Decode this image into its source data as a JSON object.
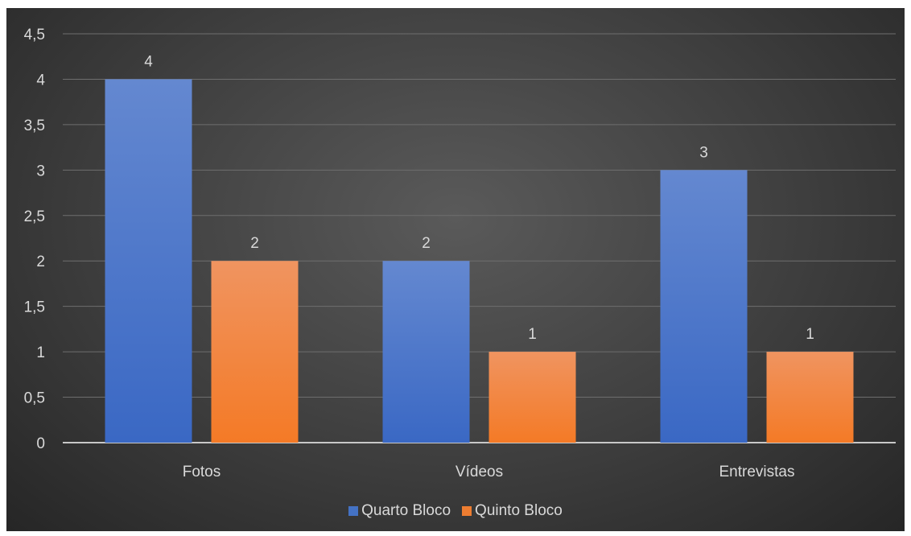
{
  "chart_data": {
    "type": "bar",
    "categories": [
      "Fotos",
      "Vídeos",
      "Entrevistas"
    ],
    "series": [
      {
        "name": "Quarto Bloco",
        "values": [
          4,
          2,
          3
        ],
        "color": "#4472c4"
      },
      {
        "name": "Quinto Bloco",
        "values": [
          2,
          1,
          1
        ],
        "color": "#ed7d31"
      }
    ],
    "ylim": [
      0,
      4.5
    ],
    "yticks": [
      "0",
      "0,5",
      "1",
      "1,5",
      "2",
      "2,5",
      "3",
      "3,5",
      "4",
      "4,5"
    ],
    "grid": true,
    "legend_position": "bottom",
    "data_labels": true
  }
}
